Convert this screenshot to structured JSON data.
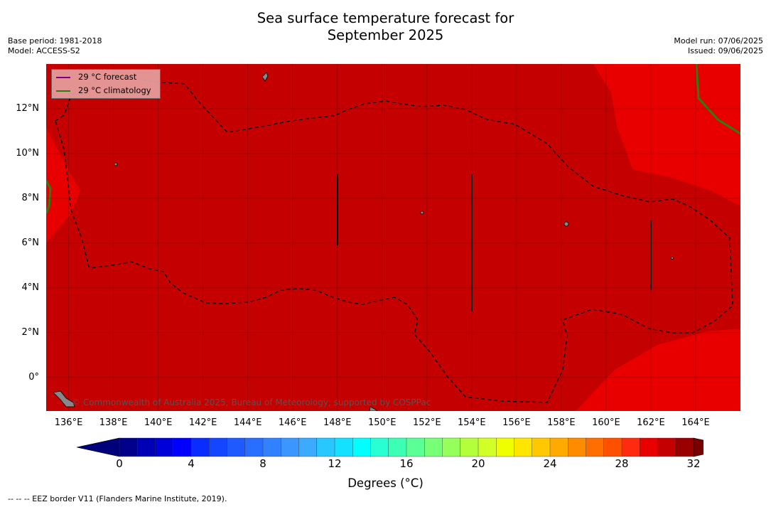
{
  "title_line1": "Sea surface temperature forecast for",
  "title_line2": "September 2025",
  "meta_left": {
    "base_period": "Base period: 1981-2018",
    "model": "Model: ACCESS-S2"
  },
  "meta_right": {
    "model_run": "Model run: 07/06/2025",
    "issued": "Issued: 09/06/2025"
  },
  "legend": {
    "forecast_label": "29 °C  forecast",
    "forecast_color": "#800080",
    "climatology_label": "29 °C  climatology",
    "climatology_color": "#2e7d10"
  },
  "map": {
    "lat_labels": [
      "12°N",
      "10°N",
      "8°N",
      "6°N",
      "4°N",
      "2°N",
      "0°"
    ],
    "lon_labels": [
      "136°E",
      "138°E",
      "140°E",
      "142°E",
      "144°E",
      "146°E",
      "148°E",
      "150°E",
      "152°E",
      "154°E",
      "156°E",
      "158°E",
      "160°E",
      "162°E",
      "164°E"
    ],
    "lat_range": [
      -1.5,
      14
    ],
    "lon_range": [
      135,
      166
    ],
    "fill_colors": {
      "c30_32": "#c40000",
      "c29_30": "#e80000",
      "c28_29": "#ff2a10"
    },
    "credit": "© Commonwealth of Australia 2025, Bureau of Meteorology, supported by COSPPac"
  },
  "colorbar": {
    "ticks": [
      "0",
      "4",
      "8",
      "12",
      "16",
      "20",
      "24",
      "28",
      "32"
    ],
    "min": 0,
    "max": 32,
    "step": 1,
    "colors": [
      "#00008b",
      "#0000b4",
      "#0000d8",
      "#0000ff",
      "#0a2cff",
      "#1446ff",
      "#1e5aff",
      "#286eff",
      "#3282ff",
      "#3c96ff",
      "#3caaff",
      "#28c8ff",
      "#14e0ff",
      "#00ffff",
      "#28ffd2",
      "#3cffb4",
      "#5aff96",
      "#78ff78",
      "#96ff5a",
      "#b4ff3c",
      "#d2ff28",
      "#f0ff00",
      "#ffe600",
      "#ffc800",
      "#ffaa00",
      "#ff8c00",
      "#ff6e00",
      "#ff5000",
      "#ff2a10",
      "#e80000",
      "#c40000",
      "#9a0000"
    ],
    "under_color": "#00007a",
    "over_color": "#7a0000",
    "label": "Degrees (°C)"
  },
  "footnote": "--  --  -- EEZ border V11 (Flanders Marine Institute, 2019)."
}
